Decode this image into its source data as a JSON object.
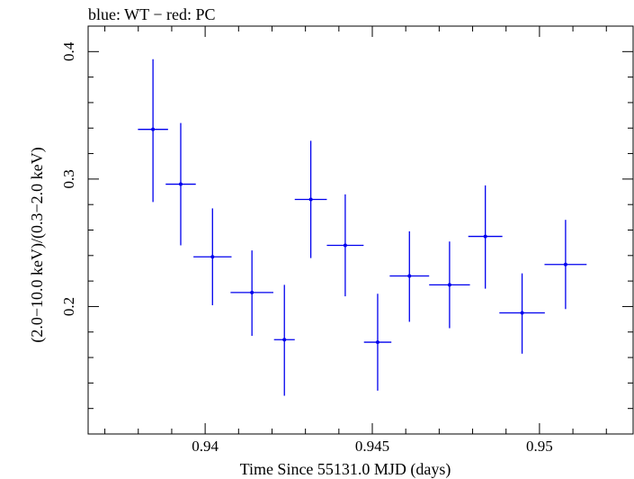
{
  "chart_data": {
    "type": "scatter",
    "title": "blue: WT − red: PC",
    "xlabel": "Time Since 55131.0 MJD (days)",
    "ylabel": "(2.0−10.0 keV)/(0.3−2.0 keV)",
    "xlim": [
      0.9365,
      0.9528
    ],
    "ylim": [
      0.1,
      0.42
    ],
    "x_ticks": [
      0.94,
      0.945,
      0.95
    ],
    "x_tick_labels": [
      "0.94",
      "0.945",
      "0.95"
    ],
    "y_ticks": [
      0.2,
      0.3,
      0.4
    ],
    "y_tick_labels": [
      "0.2",
      "0.3",
      "0.4"
    ],
    "color": "#0000ee",
    "grid": false,
    "series": [
      {
        "points": [
          {
            "x": 0.93844,
            "y": 0.339,
            "xerr": 0.00045,
            "yerr_lo": 0.057,
            "yerr_hi": 0.055
          },
          {
            "x": 0.93927,
            "y": 0.296,
            "xerr": 0.00045,
            "yerr_lo": 0.048,
            "yerr_hi": 0.048
          },
          {
            "x": 0.94022,
            "y": 0.239,
            "xerr": 0.00057,
            "yerr_lo": 0.038,
            "yerr_hi": 0.038
          },
          {
            "x": 0.9414,
            "y": 0.211,
            "xerr": 0.00064,
            "yerr_lo": 0.034,
            "yerr_hi": 0.033
          },
          {
            "x": 0.94237,
            "y": 0.174,
            "xerr": 0.00031,
            "yerr_lo": 0.044,
            "yerr_hi": 0.043
          },
          {
            "x": 0.94316,
            "y": 0.284,
            "xerr": 0.00048,
            "yerr_lo": 0.046,
            "yerr_hi": 0.046
          },
          {
            "x": 0.94419,
            "y": 0.248,
            "xerr": 0.00055,
            "yerr_lo": 0.04,
            "yerr_hi": 0.04
          },
          {
            "x": 0.94516,
            "y": 0.172,
            "xerr": 0.00041,
            "yerr_lo": 0.038,
            "yerr_hi": 0.038
          },
          {
            "x": 0.94611,
            "y": 0.224,
            "xerr": 0.00059,
            "yerr_lo": 0.036,
            "yerr_hi": 0.035
          },
          {
            "x": 0.94731,
            "y": 0.217,
            "xerr": 0.00061,
            "yerr_lo": 0.034,
            "yerr_hi": 0.034
          },
          {
            "x": 0.94838,
            "y": 0.255,
            "xerr": 0.00051,
            "yerr_lo": 0.041,
            "yerr_hi": 0.04
          },
          {
            "x": 0.94948,
            "y": 0.195,
            "xerr": 0.00068,
            "yerr_lo": 0.032,
            "yerr_hi": 0.031
          },
          {
            "x": 0.95078,
            "y": 0.233,
            "xerr": 0.00063,
            "yerr_lo": 0.035,
            "yerr_hi": 0.035
          }
        ]
      }
    ]
  }
}
